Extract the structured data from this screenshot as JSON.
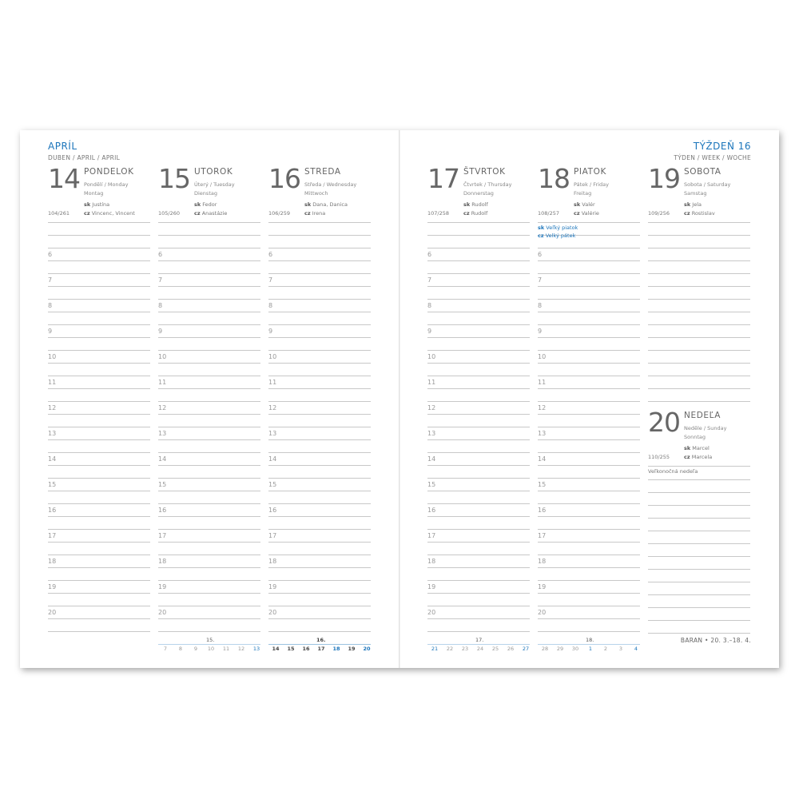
{
  "header": {
    "month": "APRÍL",
    "month_sub": "DUBEN / APRIL / APRIL",
    "week": "TÝŽDEŇ 16",
    "week_sub": "TÝDEN / WEEK / WOCHE"
  },
  "accent_color": "#1b75bb",
  "hours": [
    "6",
    "7",
    "8",
    "9",
    "10",
    "11",
    "12",
    "13",
    "14",
    "15",
    "16",
    "17",
    "18",
    "19",
    "20"
  ],
  "days": [
    {
      "num": "14",
      "name": "PONDELOK",
      "tr1": "Pondělí / Monday",
      "tr2": "Montag",
      "sk": "Justína",
      "cz": "Vincenc, Vincent",
      "doy": "104/261",
      "highlight": false
    },
    {
      "num": "15",
      "name": "UTOROK",
      "tr1": "Úterý / Tuesday",
      "tr2": "Dienstag",
      "sk": "Fedor",
      "cz": "Anastázie",
      "doy": "105/260",
      "highlight": false
    },
    {
      "num": "16",
      "name": "STREDA",
      "tr1": "Středa / Wednesday",
      "tr2": "Mittwoch",
      "sk": "Dana, Danica",
      "cz": "Irena",
      "doy": "106/259",
      "highlight": false
    },
    {
      "num": "17",
      "name": "ŠTVRTOK",
      "tr1": "Čtvrtek / Thursday",
      "tr2": "Donnerstag",
      "sk": "Rudolf",
      "cz": "Rudolf",
      "doy": "107/258",
      "highlight": false
    },
    {
      "num": "18",
      "name": "PIATOK",
      "tr1": "Pátek / Friday",
      "tr2": "Freitag",
      "sk": "Valér",
      "cz": "Valérie",
      "doy": "108/257",
      "highlight": true,
      "holiday_sk": "Veľký piatok",
      "holiday_cz": "Velký pátek"
    },
    {
      "num": "19",
      "name": "SOBOTA",
      "tr1": "Sobota / Saturday",
      "tr2": "Samstag",
      "sk": "Jela",
      "cz": "Rostislav",
      "doy": "109/256",
      "highlight": false
    },
    {
      "num": "20",
      "name": "NEDEĽA",
      "tr1": "Neděle / Sunday",
      "tr2": "Sonntag",
      "sk": "Marcel",
      "cz": "Marcela",
      "doy": "110/255",
      "highlight": true,
      "note": "Veľkonočná nedeľa"
    }
  ],
  "labels": {
    "sk": "sk",
    "cz": "cz"
  },
  "mini_calendars": [
    {
      "week": "15.",
      "days": [
        {
          "d": "7"
        },
        {
          "d": "8"
        },
        {
          "d": "9"
        },
        {
          "d": "10"
        },
        {
          "d": "11"
        },
        {
          "d": "12"
        },
        {
          "d": "13",
          "blue": true
        }
      ]
    },
    {
      "week": "16.",
      "current": true,
      "days": [
        {
          "d": "14"
        },
        {
          "d": "15"
        },
        {
          "d": "16"
        },
        {
          "d": "17"
        },
        {
          "d": "18",
          "blue": true
        },
        {
          "d": "19"
        },
        {
          "d": "20",
          "blue": true
        }
      ]
    },
    {
      "week": "17.",
      "days": [
        {
          "d": "21",
          "blue": true
        },
        {
          "d": "22"
        },
        {
          "d": "23"
        },
        {
          "d": "24"
        },
        {
          "d": "25"
        },
        {
          "d": "26"
        },
        {
          "d": "27",
          "blue": true
        }
      ]
    },
    {
      "week": "18.",
      "days": [
        {
          "d": "28"
        },
        {
          "d": "29"
        },
        {
          "d": "30"
        },
        {
          "d": "1",
          "blue": true
        },
        {
          "d": "2"
        },
        {
          "d": "3"
        },
        {
          "d": "4",
          "blue": true
        }
      ]
    }
  ],
  "zodiac": "BARAN • 20. 3.–18. 4."
}
